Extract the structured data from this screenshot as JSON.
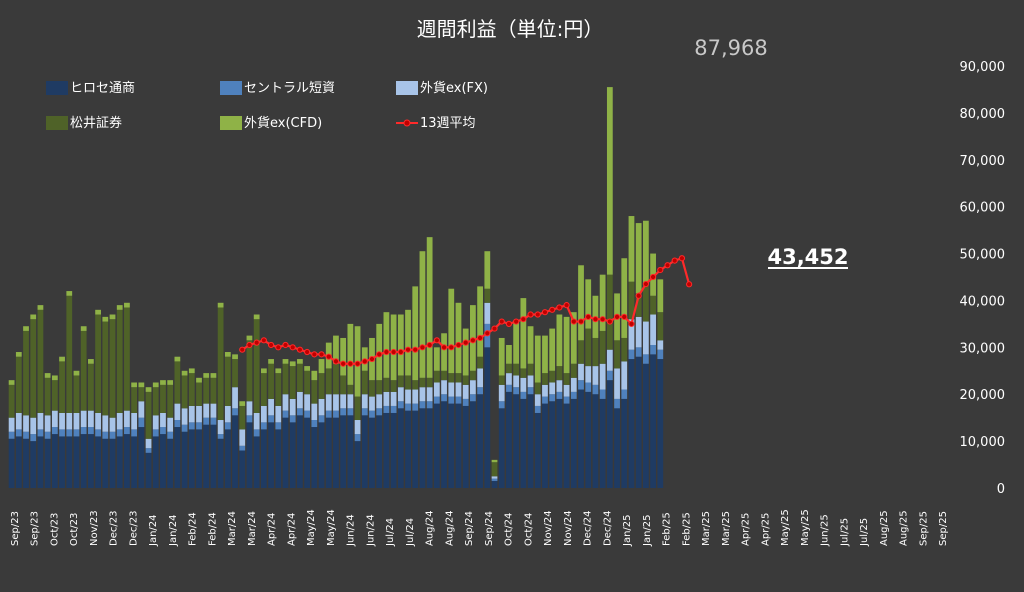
{
  "chart_data": {
    "type": "bar",
    "stacked": true,
    "title": "週間利益（単位:円）",
    "ylim": [
      0,
      90000
    ],
    "y_ticks": [
      "0",
      "10,000",
      "20,000",
      "30,000",
      "40,000",
      "50,000",
      "60,000",
      "70,000",
      "80,000",
      "90,000"
    ],
    "y_axis_position": "right",
    "grid": false,
    "legend_placement": "top-left",
    "x_labels": [
      "Sep/23",
      "Sep/23",
      "Oct/23",
      "Oct/23",
      "Nov/23",
      "Dec/23",
      "Dec/23",
      "Jan/24",
      "Jan/24",
      "Feb/24",
      "Feb/24",
      "Mar/24",
      "Mar/24",
      "Apr/24",
      "Apr/24",
      "May/24",
      "May/24",
      "Jun/24",
      "Jun/24",
      "Jul/24",
      "Jul/24",
      "Aug/24",
      "Aug/24",
      "Sep/24",
      "Sep/24",
      "Oct/24",
      "Oct/24",
      "Nov/24",
      "Nov/24",
      "Dec/24",
      "Dec/24",
      "Jan/25",
      "Jan/25",
      "Feb/25",
      "Feb/25",
      "Mar/25",
      "Mar/25",
      "Apr/25",
      "Apr/25",
      "May/25",
      "May/25",
      "Jun/25",
      "Jul/25",
      "Jul/25",
      "Aug/25",
      "Aug/25",
      "Sep/25",
      "Sep/25"
    ],
    "series": [
      {
        "name": "ヒロセ通商",
        "color": "#1f3b63",
        "values": [
          10500,
          11000,
          10500,
          10000,
          11000,
          10500,
          11500,
          11000,
          11000,
          11000,
          11500,
          11500,
          11000,
          10500,
          10500,
          11000,
          11500,
          11000,
          13000,
          7500,
          11000,
          11500,
          10500,
          13000,
          12000,
          12500,
          12500,
          13500,
          13500,
          10500,
          12500,
          15500,
          8000,
          14000,
          11000,
          12500,
          14000,
          12500,
          15000,
          14000,
          15500,
          15000,
          13000,
          14000,
          15000,
          15000,
          15500,
          15500,
          10000,
          15500,
          15000,
          15500,
          16000,
          16000,
          17000,
          16500,
          16500,
          17000,
          17000,
          18000,
          18500,
          18000,
          18000,
          17500,
          18500,
          20000,
          30000,
          1500,
          17000,
          20500,
          20000,
          19000,
          20000,
          16000,
          18000,
          18500,
          19000,
          18000,
          19000,
          21000,
          20500,
          20000,
          19000,
          23000,
          17000,
          19000,
          27500,
          28000,
          26500,
          28500,
          27500
        ]
      },
      {
        "name": "セントラル短資",
        "color": "#4f81bd",
        "values": [
          1500,
          1500,
          1500,
          1500,
          1500,
          1500,
          1500,
          1500,
          1500,
          1500,
          1500,
          1500,
          1500,
          1500,
          1500,
          1500,
          1500,
          1500,
          2000,
          1000,
          1500,
          1500,
          1500,
          1500,
          1500,
          1500,
          1500,
          1500,
          1500,
          1000,
          1500,
          1500,
          1000,
          1500,
          1500,
          1500,
          1500,
          1500,
          1500,
          1500,
          1500,
          1500,
          1500,
          1500,
          1500,
          1500,
          1500,
          1500,
          1500,
          1500,
          1500,
          1500,
          1500,
          1500,
          1500,
          1500,
          1500,
          1500,
          1500,
          1500,
          1500,
          1500,
          1500,
          1500,
          1500,
          1500,
          5000,
          500,
          1500,
          1500,
          1500,
          1500,
          1500,
          1500,
          1500,
          1500,
          1500,
          1500,
          1500,
          2000,
          2000,
          2000,
          2000,
          2000,
          2000,
          2000,
          2000,
          2000,
          2000,
          2000,
          2000
        ]
      },
      {
        "name": "外貨ex(FX)",
        "color": "#a8c4e8",
        "values": [
          3000,
          3500,
          3500,
          3500,
          3500,
          3500,
          3500,
          3500,
          3500,
          3500,
          3500,
          3500,
          3500,
          3500,
          3000,
          3500,
          3500,
          3500,
          3500,
          2000,
          3000,
          3000,
          3000,
          3500,
          3500,
          3500,
          3500,
          3000,
          3000,
          3000,
          3500,
          4500,
          3500,
          3000,
          3500,
          3500,
          3500,
          3500,
          3500,
          3500,
          3500,
          3500,
          3500,
          3500,
          3500,
          3500,
          3000,
          3000,
          3000,
          3000,
          3000,
          3000,
          3000,
          3000,
          3000,
          3000,
          3000,
          3000,
          3000,
          3000,
          3000,
          3000,
          3000,
          3000,
          3000,
          4000,
          4500,
          500,
          3500,
          2500,
          2500,
          3000,
          2500,
          2500,
          2500,
          2500,
          2500,
          2500,
          3000,
          3500,
          3500,
          4000,
          5500,
          4500,
          6500,
          6000,
          6500,
          6500,
          7000,
          6500,
          2000
        ]
      },
      {
        "name": "松井証券",
        "color": "#4f6228",
        "values": [
          7000,
          12000,
          18000,
          21000,
          22000,
          8000,
          6500,
          11000,
          25000,
          8000,
          17000,
          10000,
          21000,
          20000,
          21000,
          22000,
          22000,
          5500,
          3000,
          10000,
          6000,
          6000,
          7000,
          9000,
          7000,
          7000,
          5000,
          5500,
          5500,
          24000,
          10500,
          6000,
          5000,
          13000,
          20000,
          7000,
          7500,
          7000,
          6500,
          7000,
          6000,
          5000,
          5000,
          5500,
          5500,
          6500,
          4000,
          2000,
          5000,
          5000,
          3500,
          3000,
          3000,
          2500,
          2500,
          3000,
          2000,
          2000,
          2000,
          2500,
          2000,
          2000,
          2000,
          2000,
          2000,
          2500,
          3000,
          3000,
          2000,
          2000,
          2500,
          2000,
          2500,
          2500,
          2500,
          2500,
          3000,
          2500,
          3000,
          5000,
          8000,
          6000,
          7000,
          16000,
          6000,
          5000,
          8000,
          5000,
          8000,
          4000,
          6000
        ]
      },
      {
        "name": "外貨ex(CFD)",
        "color": "#8fb247",
        "values": [
          1000,
          1000,
          1000,
          1000,
          1000,
          1000,
          1000,
          1000,
          1000,
          1000,
          1000,
          1000,
          1000,
          1000,
          1000,
          1000,
          1000,
          1000,
          1000,
          1000,
          1000,
          1000,
          1000,
          1000,
          1000,
          1000,
          1000,
          1000,
          1000,
          1000,
          1000,
          1000,
          1000,
          1000,
          1000,
          1000,
          1000,
          1000,
          1000,
          1000,
          1000,
          1000,
          2000,
          3000,
          5500,
          6000,
          8000,
          13000,
          15000,
          5000,
          9000,
          12000,
          14000,
          14000,
          13000,
          14000,
          20000,
          27000,
          30000,
          5000,
          8000,
          18000,
          15000,
          10000,
          14000,
          15000,
          8000,
          500,
          8000,
          4000,
          9000,
          15000,
          8000,
          10000,
          8000,
          9000,
          11000,
          12000,
          11000,
          16000,
          10500,
          9000,
          12000,
          40000,
          10000,
          17000,
          14000,
          15000,
          13500,
          9000,
          7000
        ]
      },
      {
        "name": "13週平均",
        "color": "#ff2a2a",
        "type": "line",
        "values": [
          null,
          null,
          null,
          null,
          null,
          null,
          null,
          null,
          null,
          null,
          null,
          null,
          null,
          null,
          null,
          null,
          null,
          null,
          null,
          null,
          null,
          null,
          null,
          null,
          null,
          null,
          null,
          null,
          null,
          null,
          null,
          null,
          29500,
          30500,
          31000,
          31500,
          30500,
          30000,
          30500,
          30000,
          29500,
          29000,
          28500,
          28500,
          28000,
          27000,
          26500,
          26500,
          26500,
          27000,
          27500,
          28500,
          29000,
          29000,
          29000,
          29500,
          29500,
          30000,
          30500,
          31500,
          30000,
          30000,
          30500,
          31000,
          31500,
          32000,
          33000,
          34000,
          35500,
          35000,
          35500,
          36000,
          37000,
          37000,
          37500,
          38000,
          38500,
          39000,
          35500,
          35500,
          36500,
          36000,
          36000,
          35500,
          36500,
          36500,
          35000,
          41000,
          43500,
          45000,
          46500,
          47500,
          48500,
          49000,
          43452
        ]
      }
    ],
    "callouts": {
      "peak": "87,968",
      "last": "43,452"
    }
  }
}
